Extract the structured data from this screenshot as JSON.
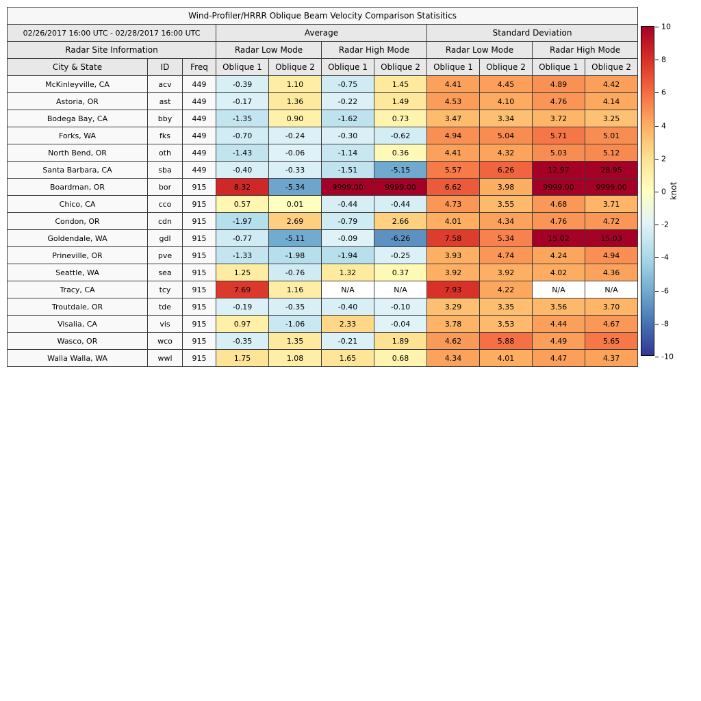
{
  "header": {
    "date_range": "02/26/2017 16:00 UTC - 02/28/2017 16:00 UTC",
    "group_average": "Average",
    "group_std": "Standard Deviation",
    "site_info": "Radar Site Information",
    "low_mode": "Radar Low Mode",
    "high_mode": "Radar High Mode",
    "col_city": "City & State",
    "col_id": "ID",
    "col_freq": "Freq",
    "col_oblique1": "Oblique 1",
    "col_oblique2": "Oblique 2"
  },
  "colorbar": {
    "label": "knot",
    "min": -10,
    "max": 10,
    "ticks": [
      10,
      8,
      6,
      4,
      2,
      0,
      -2,
      -4,
      -6,
      -8,
      -10
    ],
    "gradient_colors_top_to_bottom": [
      "#a50026",
      "#d73027",
      "#f46d43",
      "#fdae61",
      "#fee090",
      "#ffffbf",
      "#e0f3f8",
      "#abd9e9",
      "#74add1",
      "#4575b4",
      "#313695"
    ]
  },
  "chart_data": {
    "type": "heatmap",
    "title": "Wind-Profiler/HRRR Oblique Beam Velocity Comparison Statisitics",
    "unit": "knot",
    "color_range": [
      -10,
      10
    ],
    "na_text": "N/A",
    "value_columns": [
      "Average Radar Low Mode Oblique 1",
      "Average Radar Low Mode Oblique 2",
      "Average Radar High Mode Oblique 1",
      "Average Radar High Mode Oblique 2",
      "Standard Deviation Radar Low Mode Oblique 1",
      "Standard Deviation Radar Low Mode Oblique 2",
      "Standard Deviation Radar High Mode Oblique 1",
      "Standard Deviation Radar High Mode Oblique 2"
    ],
    "rows": [
      {
        "city": "McKinleyville, CA",
        "id": "acv",
        "freq": "449",
        "values": [
          "-0.39",
          "1.10",
          "-0.75",
          "1.45",
          "4.41",
          "4.45",
          "4.89",
          "4.42"
        ]
      },
      {
        "city": "Astoria, OR",
        "id": "ast",
        "freq": "449",
        "values": [
          "-0.17",
          "1.36",
          "-0.22",
          "1.49",
          "4.53",
          "4.10",
          "4.76",
          "4.14"
        ]
      },
      {
        "city": "Bodega Bay, CA",
        "id": "bby",
        "freq": "449",
        "values": [
          "-1.35",
          "0.90",
          "-1.62",
          "0.73",
          "3.47",
          "3.34",
          "3.72",
          "3.25"
        ]
      },
      {
        "city": "Forks, WA",
        "id": "fks",
        "freq": "449",
        "values": [
          "-0.70",
          "-0.24",
          "-0.30",
          "-0.62",
          "4.94",
          "5.04",
          "5.71",
          "5.01"
        ]
      },
      {
        "city": "North Bend, OR",
        "id": "oth",
        "freq": "449",
        "values": [
          "-1.43",
          "-0.06",
          "-1.14",
          "0.36",
          "4.41",
          "4.32",
          "5.03",
          "5.12"
        ]
      },
      {
        "city": "Santa Barbara, CA",
        "id": "sba",
        "freq": "449",
        "values": [
          "-0.40",
          "-0.33",
          "-1.51",
          "-5.15",
          "5.57",
          "6.26",
          "12.97",
          "28.95"
        ]
      },
      {
        "city": "Boardman, OR",
        "id": "bor",
        "freq": "915",
        "values": [
          "8.32",
          "-5.34",
          "9999.00",
          "9999.00",
          "6.62",
          "3.98",
          "9999.00",
          "9999.00"
        ]
      },
      {
        "city": "Chico, CA",
        "id": "cco",
        "freq": "915",
        "values": [
          "0.57",
          "0.01",
          "-0.44",
          "-0.44",
          "4.73",
          "3.55",
          "4.68",
          "3.71"
        ]
      },
      {
        "city": "Condon, OR",
        "id": "cdn",
        "freq": "915",
        "values": [
          "-1.97",
          "2.69",
          "-0.79",
          "2.66",
          "4.01",
          "4.34",
          "4.76",
          "4.72"
        ]
      },
      {
        "city": "Goldendale, WA",
        "id": "gdl",
        "freq": "915",
        "values": [
          "-0.77",
          "-5.11",
          "-0.09",
          "-6.26",
          "7.58",
          "5.34",
          "15.02",
          "15.03"
        ]
      },
      {
        "city": "Prineville, OR",
        "id": "pve",
        "freq": "915",
        "values": [
          "-1.33",
          "-1.98",
          "-1.94",
          "-0.25",
          "3.93",
          "4.74",
          "4.24",
          "4.94"
        ]
      },
      {
        "city": "Seattle, WA",
        "id": "sea",
        "freq": "915",
        "values": [
          "1.25",
          "-0.76",
          "1.32",
          "0.37",
          "3.92",
          "3.92",
          "4.02",
          "4.36"
        ]
      },
      {
        "city": "Tracy, CA",
        "id": "tcy",
        "freq": "915",
        "values": [
          "7.69",
          "1.16",
          "N/A",
          "N/A",
          "7.93",
          "4.22",
          "N/A",
          "N/A"
        ]
      },
      {
        "city": "Troutdale, OR",
        "id": "tde",
        "freq": "915",
        "values": [
          "-0.19",
          "-0.35",
          "-0.40",
          "-0.10",
          "3.29",
          "3.35",
          "3.56",
          "3.70"
        ]
      },
      {
        "city": "Visalia, CA",
        "id": "vis",
        "freq": "915",
        "values": [
          "0.97",
          "-1.06",
          "2.33",
          "-0.04",
          "3.78",
          "3.53",
          "4.44",
          "4.67"
        ]
      },
      {
        "city": "Wasco, OR",
        "id": "wco",
        "freq": "915",
        "values": [
          "-0.35",
          "1.35",
          "-0.21",
          "1.89",
          "4.62",
          "5.88",
          "4.49",
          "5.65"
        ]
      },
      {
        "city": "Walla Walla, WA",
        "id": "wwl",
        "freq": "915",
        "values": [
          "1.75",
          "1.08",
          "1.65",
          "0.68",
          "4.34",
          "4.01",
          "4.47",
          "4.37"
        ]
      }
    ]
  }
}
